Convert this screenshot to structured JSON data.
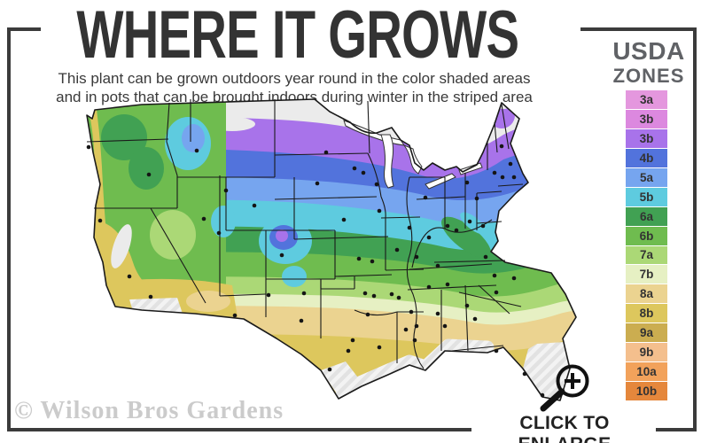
{
  "title": "WHERE IT GROWS",
  "subtitle": {
    "line1": "This plant can be grown outdoors year round in the color shaded areas",
    "line2": "and in pots that can be brought indoors during winter in the striped area"
  },
  "legend": {
    "heading_line1": "USDA",
    "heading_line2": "ZONES",
    "zones": [
      {
        "label": "3a",
        "color": "#E497DE"
      },
      {
        "label": "3b",
        "color": "#DC88DF"
      },
      {
        "label": "3b",
        "color": "#A873EA"
      },
      {
        "label": "4b",
        "color": "#5273DC"
      },
      {
        "label": "5a",
        "color": "#76A5EF"
      },
      {
        "label": "5b",
        "color": "#5ECBDF"
      },
      {
        "label": "6a",
        "color": "#41A153"
      },
      {
        "label": "6b",
        "color": "#6FBC4F"
      },
      {
        "label": "7a",
        "color": "#ABD876"
      },
      {
        "label": "7b",
        "color": "#E6F0C3"
      },
      {
        "label": "8a",
        "color": "#EBD390"
      },
      {
        "label": "8b",
        "color": "#DDC75D"
      },
      {
        "label": "9a",
        "color": "#CBAD50"
      },
      {
        "label": "9b",
        "color": "#F4BF8D"
      },
      {
        "label": "10a",
        "color": "#F2A25B"
      },
      {
        "label": "10b",
        "color": "#E5873C"
      }
    ]
  },
  "map": {
    "striped_area_fill": "#e2e2e2",
    "no_zone_fill": "#ebebeb",
    "border_color": "#1a1a1a",
    "city_dot_color": "#151515"
  },
  "watermark": "© Wilson Bros Gardens",
  "enlarge": {
    "label": "CLICK TO ENLARGE",
    "icon": "magnifier-plus-icon"
  },
  "colors": {
    "frame": "#3b3b3b",
    "title": "#333333",
    "subtitle": "#3a3a3a",
    "legend_heading": "#606266",
    "watermark": "#cbcbcb"
  }
}
